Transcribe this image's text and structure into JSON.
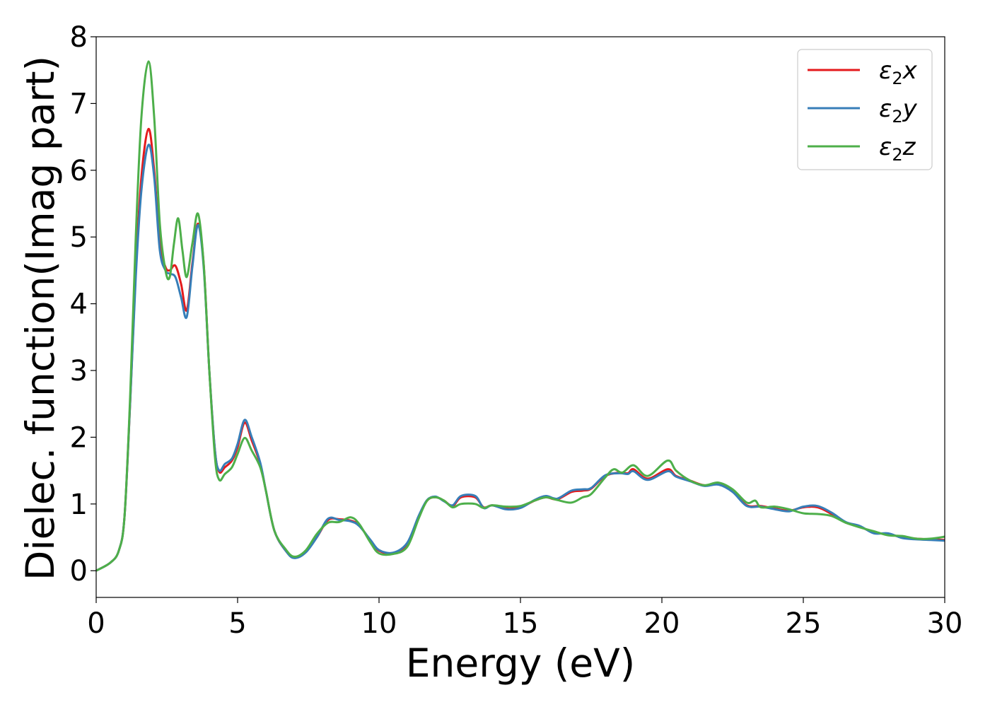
{
  "chart_data": {
    "type": "line",
    "xlabel": "Energy (eV)",
    "ylabel": "Dielec. function(Imag part)",
    "xlim": [
      0,
      30
    ],
    "ylim": [
      -0.4,
      8
    ],
    "xticks": [
      0,
      5,
      10,
      15,
      20,
      25,
      30
    ],
    "yticks": [
      0,
      1,
      2,
      3,
      4,
      5,
      6,
      7,
      8
    ],
    "grid": false,
    "legend_position": "top-right",
    "series": [
      {
        "name": "ε₂x",
        "name_base": "ε",
        "name_sub": "2",
        "name_suffix": "x",
        "color": "#e41a1c",
        "points": [
          [
            0,
            0
          ],
          [
            0.5,
            0.12
          ],
          [
            0.8,
            0.3
          ],
          [
            1.0,
            0.8
          ],
          [
            1.2,
            2.5
          ],
          [
            1.4,
            4.5
          ],
          [
            1.6,
            5.9
          ],
          [
            1.85,
            6.62
          ],
          [
            2.05,
            6.0
          ],
          [
            2.25,
            4.9
          ],
          [
            2.45,
            4.55
          ],
          [
            2.6,
            4.5
          ],
          [
            2.8,
            4.57
          ],
          [
            3.0,
            4.3
          ],
          [
            3.2,
            3.9
          ],
          [
            3.4,
            4.6
          ],
          [
            3.6,
            5.2
          ],
          [
            3.8,
            4.6
          ],
          [
            4.0,
            3.0
          ],
          [
            4.2,
            1.8
          ],
          [
            4.35,
            1.48
          ],
          [
            4.55,
            1.55
          ],
          [
            4.8,
            1.65
          ],
          [
            5.0,
            1.85
          ],
          [
            5.25,
            2.22
          ],
          [
            5.5,
            1.95
          ],
          [
            5.8,
            1.6
          ],
          [
            6.0,
            1.2
          ],
          [
            6.3,
            0.6
          ],
          [
            6.7,
            0.3
          ],
          [
            7.0,
            0.2
          ],
          [
            7.4,
            0.28
          ],
          [
            7.8,
            0.5
          ],
          [
            8.2,
            0.76
          ],
          [
            8.6,
            0.77
          ],
          [
            9.0,
            0.75
          ],
          [
            9.3,
            0.68
          ],
          [
            9.7,
            0.45
          ],
          [
            10.0,
            0.3
          ],
          [
            10.5,
            0.26
          ],
          [
            11.0,
            0.4
          ],
          [
            11.4,
            0.8
          ],
          [
            11.7,
            1.05
          ],
          [
            12.0,
            1.1
          ],
          [
            12.3,
            1.05
          ],
          [
            12.6,
            0.97
          ],
          [
            12.9,
            1.1
          ],
          [
            13.4,
            1.1
          ],
          [
            13.7,
            0.95
          ],
          [
            14.0,
            0.98
          ],
          [
            14.5,
            0.93
          ],
          [
            15.0,
            0.95
          ],
          [
            15.5,
            1.05
          ],
          [
            15.9,
            1.1
          ],
          [
            16.3,
            1.07
          ],
          [
            16.8,
            1.18
          ],
          [
            17.2,
            1.2
          ],
          [
            17.5,
            1.23
          ],
          [
            18.0,
            1.42
          ],
          [
            18.5,
            1.47
          ],
          [
            18.8,
            1.46
          ],
          [
            19.0,
            1.52
          ],
          [
            19.5,
            1.38
          ],
          [
            20.2,
            1.52
          ],
          [
            20.5,
            1.42
          ],
          [
            21.0,
            1.35
          ],
          [
            21.5,
            1.28
          ],
          [
            22.0,
            1.3
          ],
          [
            22.5,
            1.2
          ],
          [
            23.0,
            0.98
          ],
          [
            23.5,
            0.97
          ],
          [
            24.0,
            0.93
          ],
          [
            24.5,
            0.9
          ],
          [
            25.0,
            0.95
          ],
          [
            25.5,
            0.95
          ],
          [
            26.0,
            0.85
          ],
          [
            26.5,
            0.72
          ],
          [
            27.0,
            0.66
          ],
          [
            27.5,
            0.57
          ],
          [
            28.0,
            0.55
          ],
          [
            28.5,
            0.5
          ],
          [
            29.0,
            0.48
          ],
          [
            29.5,
            0.47
          ],
          [
            30.0,
            0.46
          ]
        ]
      },
      {
        "name": "ε₂y",
        "name_base": "ε",
        "name_sub": "2",
        "name_suffix": "y",
        "color": "#377eb8",
        "points": [
          [
            0,
            0
          ],
          [
            0.5,
            0.12
          ],
          [
            0.8,
            0.3
          ],
          [
            1.0,
            0.8
          ],
          [
            1.2,
            2.5
          ],
          [
            1.4,
            4.4
          ],
          [
            1.6,
            5.7
          ],
          [
            1.85,
            6.38
          ],
          [
            2.05,
            5.9
          ],
          [
            2.25,
            4.8
          ],
          [
            2.45,
            4.5
          ],
          [
            2.6,
            4.45
          ],
          [
            2.8,
            4.4
          ],
          [
            3.0,
            4.1
          ],
          [
            3.2,
            3.8
          ],
          [
            3.4,
            4.55
          ],
          [
            3.6,
            5.18
          ],
          [
            3.8,
            4.55
          ],
          [
            4.0,
            3.0
          ],
          [
            4.2,
            1.8
          ],
          [
            4.35,
            1.5
          ],
          [
            4.55,
            1.6
          ],
          [
            4.8,
            1.68
          ],
          [
            5.0,
            1.9
          ],
          [
            5.25,
            2.26
          ],
          [
            5.5,
            2.0
          ],
          [
            5.8,
            1.62
          ],
          [
            6.0,
            1.2
          ],
          [
            6.3,
            0.6
          ],
          [
            6.7,
            0.3
          ],
          [
            7.0,
            0.19
          ],
          [
            7.4,
            0.27
          ],
          [
            7.8,
            0.5
          ],
          [
            8.2,
            0.78
          ],
          [
            8.6,
            0.76
          ],
          [
            9.0,
            0.74
          ],
          [
            9.3,
            0.67
          ],
          [
            9.7,
            0.46
          ],
          [
            10.0,
            0.31
          ],
          [
            10.5,
            0.27
          ],
          [
            11.0,
            0.42
          ],
          [
            11.4,
            0.82
          ],
          [
            11.7,
            1.06
          ],
          [
            12.0,
            1.11
          ],
          [
            12.3,
            1.04
          ],
          [
            12.6,
            0.98
          ],
          [
            12.9,
            1.12
          ],
          [
            13.4,
            1.12
          ],
          [
            13.7,
            0.94
          ],
          [
            14.0,
            0.98
          ],
          [
            14.5,
            0.92
          ],
          [
            15.0,
            0.94
          ],
          [
            15.5,
            1.06
          ],
          [
            15.9,
            1.12
          ],
          [
            16.3,
            1.08
          ],
          [
            16.8,
            1.2
          ],
          [
            17.2,
            1.22
          ],
          [
            17.5,
            1.24
          ],
          [
            18.0,
            1.43
          ],
          [
            18.5,
            1.46
          ],
          [
            18.8,
            1.45
          ],
          [
            19.0,
            1.49
          ],
          [
            19.5,
            1.36
          ],
          [
            20.2,
            1.49
          ],
          [
            20.5,
            1.41
          ],
          [
            21.0,
            1.34
          ],
          [
            21.5,
            1.27
          ],
          [
            22.0,
            1.29
          ],
          [
            22.5,
            1.18
          ],
          [
            23.0,
            0.97
          ],
          [
            23.5,
            0.96
          ],
          [
            24.0,
            0.92
          ],
          [
            24.5,
            0.89
          ],
          [
            25.0,
            0.96
          ],
          [
            25.5,
            0.97
          ],
          [
            26.0,
            0.87
          ],
          [
            26.5,
            0.73
          ],
          [
            27.0,
            0.67
          ],
          [
            27.5,
            0.56
          ],
          [
            28.0,
            0.56
          ],
          [
            28.5,
            0.49
          ],
          [
            29.0,
            0.47
          ],
          [
            29.5,
            0.46
          ],
          [
            30.0,
            0.45
          ]
        ]
      },
      {
        "name": "ε₂z",
        "name_base": "ε",
        "name_sub": "2",
        "name_suffix": "z",
        "color": "#4daf4a",
        "points": [
          [
            0,
            0
          ],
          [
            0.5,
            0.12
          ],
          [
            0.8,
            0.3
          ],
          [
            1.0,
            0.8
          ],
          [
            1.2,
            2.6
          ],
          [
            1.4,
            5.0
          ],
          [
            1.6,
            6.8
          ],
          [
            1.85,
            7.63
          ],
          [
            2.05,
            6.8
          ],
          [
            2.25,
            5.2
          ],
          [
            2.45,
            4.5
          ],
          [
            2.6,
            4.4
          ],
          [
            2.75,
            4.9
          ],
          [
            2.9,
            5.28
          ],
          [
            3.05,
            4.8
          ],
          [
            3.2,
            4.4
          ],
          [
            3.4,
            4.9
          ],
          [
            3.6,
            5.35
          ],
          [
            3.8,
            4.6
          ],
          [
            4.0,
            3.0
          ],
          [
            4.2,
            1.7
          ],
          [
            4.35,
            1.36
          ],
          [
            4.55,
            1.45
          ],
          [
            4.8,
            1.55
          ],
          [
            5.0,
            1.75
          ],
          [
            5.25,
            1.99
          ],
          [
            5.5,
            1.8
          ],
          [
            5.8,
            1.55
          ],
          [
            6.0,
            1.2
          ],
          [
            6.3,
            0.6
          ],
          [
            6.7,
            0.32
          ],
          [
            7.0,
            0.21
          ],
          [
            7.4,
            0.3
          ],
          [
            7.8,
            0.55
          ],
          [
            8.2,
            0.72
          ],
          [
            8.6,
            0.73
          ],
          [
            9.0,
            0.8
          ],
          [
            9.3,
            0.7
          ],
          [
            9.7,
            0.42
          ],
          [
            10.0,
            0.26
          ],
          [
            10.5,
            0.25
          ],
          [
            11.0,
            0.36
          ],
          [
            11.4,
            0.78
          ],
          [
            11.7,
            1.05
          ],
          [
            12.0,
            1.1
          ],
          [
            12.3,
            1.05
          ],
          [
            12.6,
            0.95
          ],
          [
            12.9,
            1.0
          ],
          [
            13.4,
            1.0
          ],
          [
            13.7,
            0.94
          ],
          [
            14.0,
            0.98
          ],
          [
            14.5,
            0.96
          ],
          [
            15.0,
            0.97
          ],
          [
            15.5,
            1.05
          ],
          [
            15.9,
            1.1
          ],
          [
            16.3,
            1.06
          ],
          [
            16.8,
            1.02
          ],
          [
            17.2,
            1.1
          ],
          [
            17.5,
            1.15
          ],
          [
            18.0,
            1.4
          ],
          [
            18.3,
            1.52
          ],
          [
            18.6,
            1.47
          ],
          [
            19.0,
            1.58
          ],
          [
            19.5,
            1.42
          ],
          [
            20.2,
            1.65
          ],
          [
            20.5,
            1.5
          ],
          [
            21.0,
            1.35
          ],
          [
            21.5,
            1.28
          ],
          [
            22.0,
            1.32
          ],
          [
            22.5,
            1.22
          ],
          [
            23.0,
            1.02
          ],
          [
            23.3,
            1.05
          ],
          [
            23.5,
            0.95
          ],
          [
            24.0,
            0.96
          ],
          [
            24.5,
            0.92
          ],
          [
            25.0,
            0.86
          ],
          [
            25.5,
            0.85
          ],
          [
            26.0,
            0.82
          ],
          [
            26.5,
            0.72
          ],
          [
            27.0,
            0.65
          ],
          [
            27.5,
            0.59
          ],
          [
            28.0,
            0.53
          ],
          [
            28.5,
            0.52
          ],
          [
            29.0,
            0.48
          ],
          [
            29.5,
            0.48
          ],
          [
            30.0,
            0.51
          ]
        ]
      }
    ]
  }
}
